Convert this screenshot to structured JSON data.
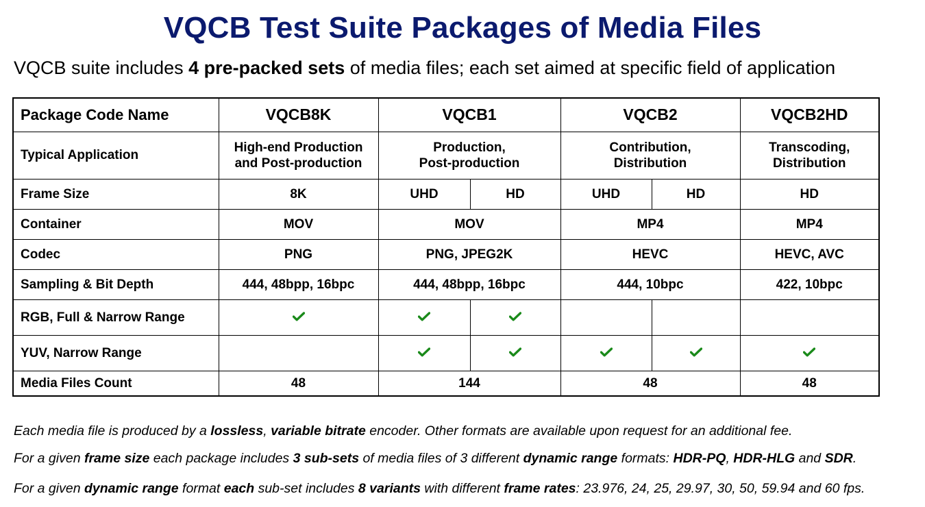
{
  "title": "VQCB Test Suite Packages of Media Files",
  "subtitle": {
    "pre": "VQCB suite includes ",
    "bold": "4 pre-packed sets",
    "post": " of media files; each set aimed at specific field of application"
  },
  "table": {
    "header": {
      "label": "Package Code Name",
      "packages": [
        "VQCB8K",
        "VQCB1",
        "VQCB2",
        "VQCB2HD"
      ]
    },
    "typical_application": {
      "label": "Typical Application",
      "values": [
        [
          "High-end Production",
          "and Post-production"
        ],
        [
          "Production,",
          "Post-production"
        ],
        [
          "Contribution,",
          "Distribution"
        ],
        [
          "Transcoding,",
          "Distribution"
        ]
      ]
    },
    "frame_size": {
      "label": "Frame Size",
      "vqcb8k": "8K",
      "vqcb1": [
        "UHD",
        "HD"
      ],
      "vqcb2": [
        "UHD",
        "HD"
      ],
      "vqcb2hd": "HD"
    },
    "container": {
      "label": "Container",
      "values": [
        "MOV",
        "MOV",
        "MP4",
        "MP4"
      ]
    },
    "codec": {
      "label": "Codec",
      "values": [
        "PNG",
        "PNG, JPEG2K",
        "HEVC",
        "HEVC, AVC"
      ]
    },
    "sampling": {
      "label": "Sampling & Bit Depth",
      "values": [
        "444, 48bpp, 16bpc",
        "444, 48bpp, 16bpc",
        "444, 10bpc",
        "422, 10bpc"
      ]
    },
    "rgb_range": {
      "label": "RGB, Full & Narrow Range",
      "checks": [
        true,
        true,
        true,
        false,
        false,
        false
      ]
    },
    "yuv_range": {
      "label": "YUV, Narrow Range",
      "checks": [
        false,
        true,
        true,
        true,
        true,
        true
      ]
    },
    "media_count": {
      "label": "Media Files Count",
      "values": [
        "48",
        "144",
        "48",
        "48"
      ]
    },
    "check_color": "#1a8a1a"
  },
  "notes": {
    "n1": {
      "p1": "Each media file is produced by a ",
      "b1": "lossless",
      "p2": ", ",
      "b2": "variable bitrate",
      "p3": " encoder. Other formats are available upon request for an additional fee."
    },
    "n2": {
      "p1": "For a given ",
      "b1": "frame size",
      "p2": " each package includes ",
      "b2": "3 sub-sets",
      "p3": " of media files of 3 different ",
      "b3": "dynamic range",
      "p4": " formats: ",
      "b4": "HDR-PQ",
      "p5": ", ",
      "b5": "HDR-HLG",
      "p6": " and ",
      "b6": "SDR",
      "p7": "."
    },
    "n3": {
      "p1": "For a given ",
      "b1": "dynamic range",
      "p2": " format ",
      "b2": "each",
      "p3": " sub-set includes ",
      "b3": "8 variants",
      "p4": " with different ",
      "b4": "frame rates",
      "p5": ": 23.976, 24, 25, 29.97, 30, 50, 59.94 and 60 fps."
    }
  }
}
